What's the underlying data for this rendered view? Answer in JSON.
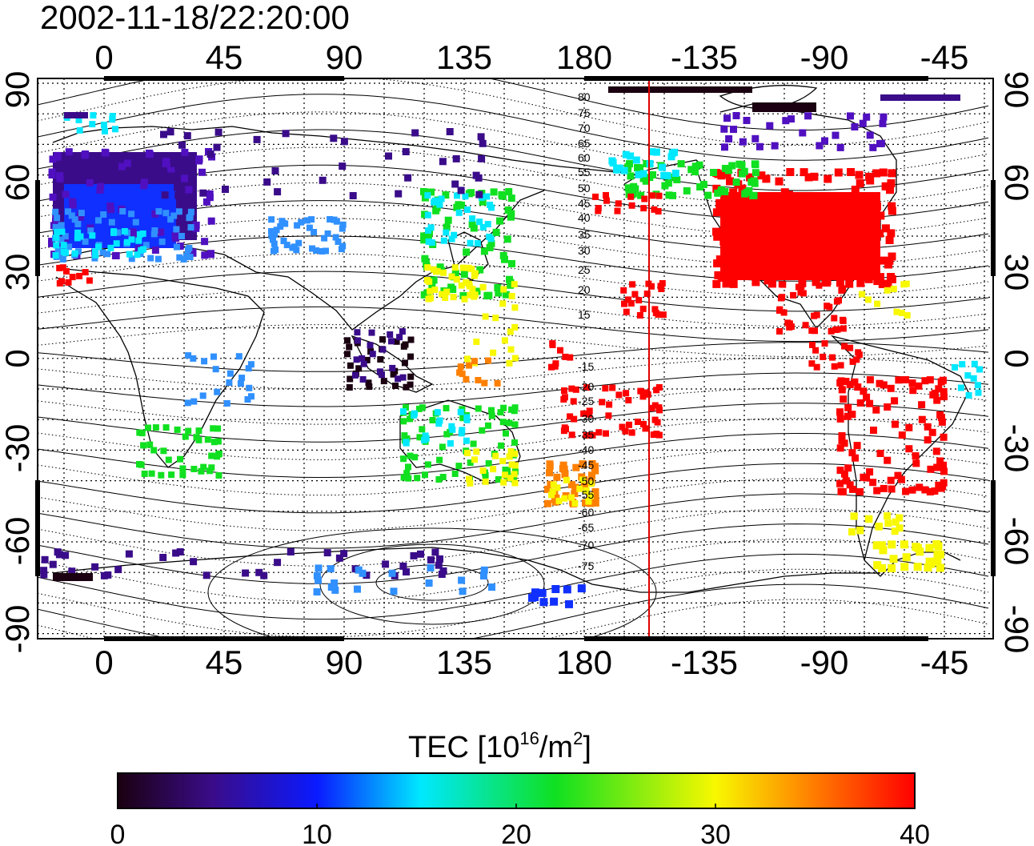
{
  "header": {
    "timestamp": "2002-11-18/22:20:00"
  },
  "map": {
    "lon_ticks": [
      "0",
      "45",
      "90",
      "135",
      "180",
      "-135",
      "-90",
      "-45"
    ],
    "lat_ticks": [
      "90",
      "60",
      "30",
      "0",
      "-30",
      "-60",
      "-90"
    ],
    "contour_labels": [
      "80",
      "75",
      "70",
      "65",
      "60",
      "55",
      "50",
      "45",
      "40",
      "35",
      "30",
      "25",
      "20",
      "15",
      "-15",
      "-20",
      "-25",
      "-30",
      "-35",
      "-40",
      "-45",
      "-50",
      "-55",
      "-60",
      "-65",
      "-70",
      "-75"
    ],
    "terminator_color": "#e00000"
  },
  "colorbar": {
    "title_main": "TEC  [10",
    "title_sup1": "16",
    "title_mid": "/m",
    "title_sup2": "2",
    "title_end": "]",
    "tick_labels": [
      "0",
      "10",
      "20",
      "30",
      "40"
    ],
    "stops": [
      "#1a0010",
      "#3a0c8a",
      "#0a1aff",
      "#00e8ff",
      "#10e020",
      "#f8f800",
      "#ff8000",
      "#ff0000"
    ]
  }
}
